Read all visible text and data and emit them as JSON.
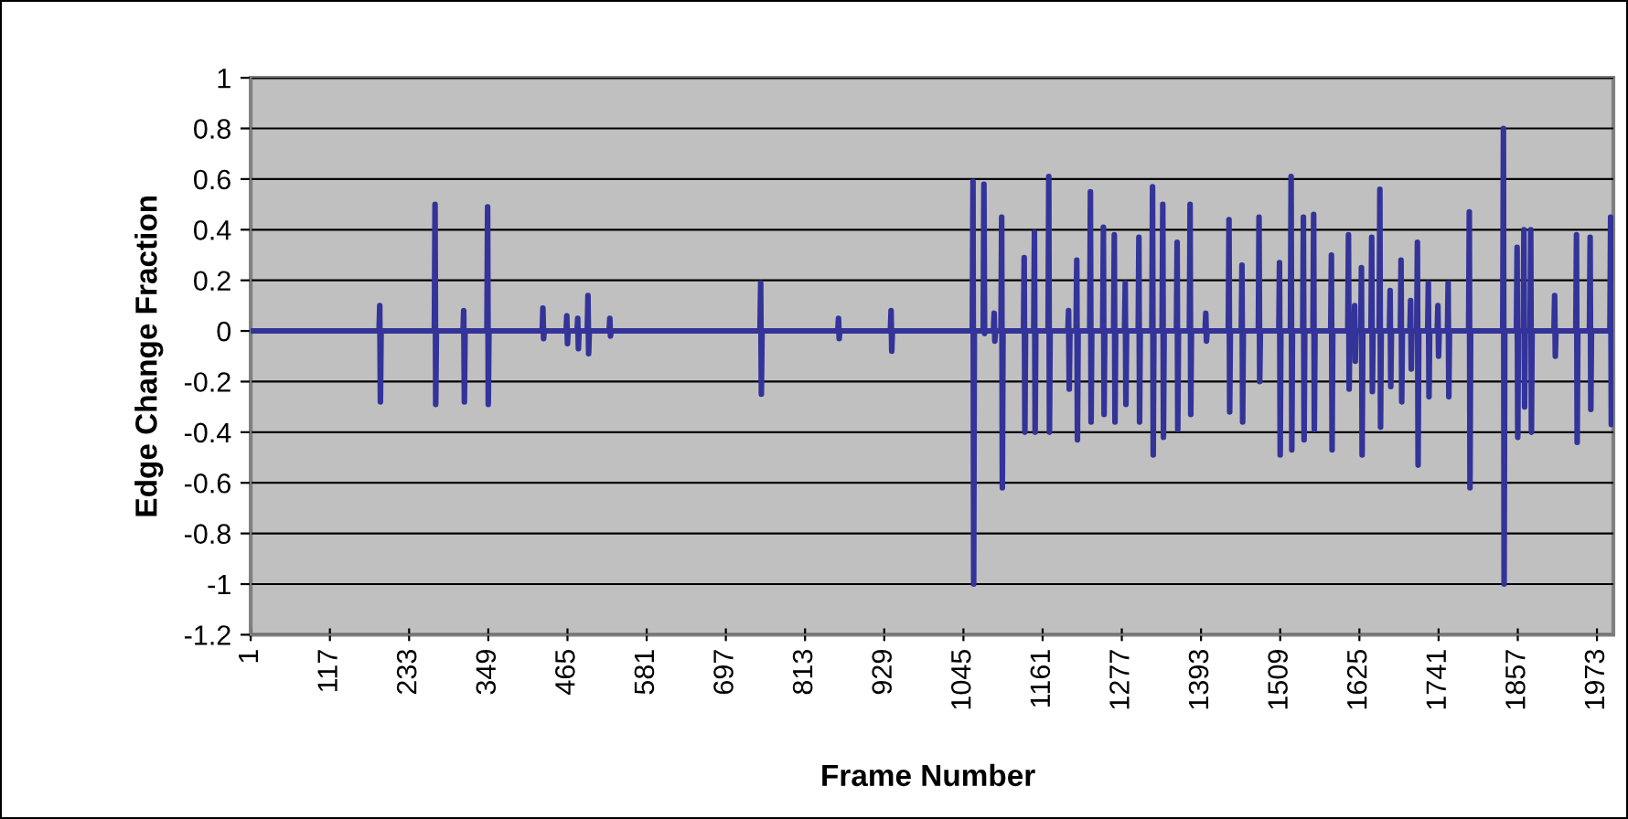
{
  "chart_data": {
    "type": "line",
    "xlabel": "Frame Number",
    "ylabel": "Edge Change Fraction",
    "xlim": [
      1,
      1997
    ],
    "xticks": [
      1,
      117,
      233,
      349,
      465,
      581,
      697,
      813,
      929,
      1045,
      1161,
      1277,
      1393,
      1509,
      1625,
      1741,
      1857,
      1973
    ],
    "ylim": [
      -1.2,
      1
    ],
    "yticks": [
      -1.2,
      -1,
      -0.8,
      -0.6,
      -0.4,
      -0.2,
      0,
      0.2,
      0.4,
      0.6,
      0.8,
      1
    ],
    "grid": "y",
    "series": [
      {
        "color": "#333399",
        "x": [
          1,
          189,
          190,
          191,
          192,
          270,
          271,
          272,
          273,
          312,
          313,
          314,
          315,
          347,
          348,
          349,
          350,
          428,
          429,
          430,
          431,
          463,
          464,
          465,
          466,
          479,
          480,
          481,
          482,
          494,
          495,
          496,
          497,
          526,
          527,
          528,
          529,
          747,
          748,
          749,
          750,
          861,
          862,
          863,
          864,
          938,
          939,
          940,
          941,
          1058,
          1059,
          1060,
          1061,
          1074,
          1075,
          1076,
          1077,
          1089,
          1090,
          1091,
          1092,
          1100,
          1101,
          1102,
          1103,
          1133,
          1134,
          1135,
          1136,
          1148,
          1149,
          1150,
          1151,
          1169,
          1170,
          1171,
          1172,
          1198,
          1199,
          1200,
          1201,
          1210,
          1211,
          1212,
          1213,
          1230,
          1231,
          1232,
          1233,
          1249,
          1250,
          1251,
          1252,
          1265,
          1266,
          1267,
          1268,
          1281,
          1282,
          1283,
          1284,
          1301,
          1302,
          1303,
          1304,
          1321,
          1322,
          1323,
          1324,
          1336,
          1337,
          1338,
          1339,
          1357,
          1358,
          1359,
          1360,
          1376,
          1377,
          1378,
          1379,
          1399,
          1400,
          1401,
          1402,
          1433,
          1434,
          1435,
          1436,
          1452,
          1453,
          1454,
          1455,
          1477,
          1478,
          1479,
          1480,
          1507,
          1508,
          1509,
          1510,
          1524,
          1525,
          1526,
          1527,
          1542,
          1543,
          1544,
          1545,
          1557,
          1558,
          1559,
          1560,
          1583,
          1584,
          1585,
          1586,
          1608,
          1609,
          1610,
          1611,
          1617,
          1618,
          1619,
          1620,
          1627,
          1628,
          1629,
          1630,
          1642,
          1643,
          1644,
          1645,
          1654,
          1655,
          1656,
          1657,
          1669,
          1670,
          1671,
          1672,
          1685,
          1686,
          1687,
          1688,
          1699,
          1700,
          1701,
          1702,
          1709,
          1710,
          1711,
          1712,
          1725,
          1726,
          1727,
          1728,
          1739,
          1740,
          1741,
          1742,
          1754,
          1755,
          1756,
          1757,
          1785,
          1786,
          1787,
          1788,
          1835,
          1836,
          1837,
          1838,
          1855,
          1856,
          1857,
          1858,
          1865,
          1866,
          1867,
          1868,
          1875,
          1876,
          1877,
          1878,
          1910,
          1911,
          1912,
          1913,
          1942,
          1943,
          1944,
          1945,
          1962,
          1963,
          1964,
          1965,
          1992,
          1993,
          1994,
          1995
        ],
        "values": [
          0,
          0,
          0.1,
          -0.28,
          0,
          0,
          0.5,
          -0.29,
          0,
          0,
          0.08,
          -0.28,
          0,
          0,
          0.49,
          -0.29,
          0,
          0,
          0.09,
          -0.03,
          0,
          0,
          0.06,
          -0.05,
          0,
          0,
          0.05,
          -0.07,
          0,
          0,
          0.14,
          -0.09,
          0,
          0,
          0.05,
          -0.02,
          0,
          0,
          0.19,
          -0.25,
          0,
          0,
          0.05,
          -0.03,
          0,
          0,
          0.08,
          -0.08,
          0,
          0,
          0.59,
          -1,
          0,
          0,
          0.58,
          -0.01,
          0,
          0,
          0.07,
          -0.04,
          0,
          0,
          0.45,
          -0.62,
          0,
          0,
          0.29,
          -0.4,
          0,
          0,
          0.39,
          -0.4,
          0,
          0,
          0.61,
          -0.4,
          0,
          0,
          0.08,
          -0.23,
          0,
          0,
          0.28,
          -0.43,
          0,
          0,
          0.55,
          -0.36,
          0,
          0,
          0.41,
          -0.33,
          0,
          0,
          0.38,
          -0.36,
          0,
          0,
          0.19,
          -0.29,
          0,
          0,
          0.37,
          -0.36,
          0,
          0,
          0.57,
          -0.49,
          0,
          0,
          0.5,
          -0.42,
          0,
          0,
          0.35,
          -0.39,
          0,
          0,
          0.5,
          -0.33,
          0,
          0,
          0.07,
          -0.04,
          0,
          0,
          0.44,
          -0.32,
          0,
          0,
          0.26,
          -0.36,
          0,
          0,
          0.45,
          -0.2,
          0,
          0,
          0.27,
          -0.49,
          0,
          0,
          0.61,
          -0.47,
          0,
          0,
          0.45,
          -0.43,
          0,
          0,
          0.46,
          -0.39,
          0,
          0,
          0.3,
          -0.47,
          0,
          0,
          0.38,
          -0.23,
          0,
          0,
          0.1,
          -0.12,
          0,
          0,
          0.25,
          -0.49,
          0,
          0,
          0.37,
          -0.24,
          0,
          0,
          0.56,
          -0.38,
          0,
          0,
          0.16,
          -0.22,
          0,
          0,
          0.28,
          -0.28,
          0,
          0,
          0.12,
          -0.15,
          0,
          0,
          0.35,
          -0.53,
          0,
          0,
          0.19,
          -0.26,
          0,
          0,
          0.1,
          -0.1,
          0,
          0,
          0.19,
          -0.26,
          0,
          0,
          0.47,
          -0.62,
          0,
          0,
          0.8,
          -1,
          0,
          0,
          0.33,
          -0.42,
          0,
          0,
          0.4,
          -0.3,
          0,
          0,
          0.4,
          -0.4,
          0,
          0,
          0.14,
          -0.1,
          0,
          0,
          0.38,
          -0.44,
          0,
          0,
          0.37,
          -0.31,
          0,
          0,
          0.45,
          -0.37,
          0
        ]
      }
    ]
  }
}
